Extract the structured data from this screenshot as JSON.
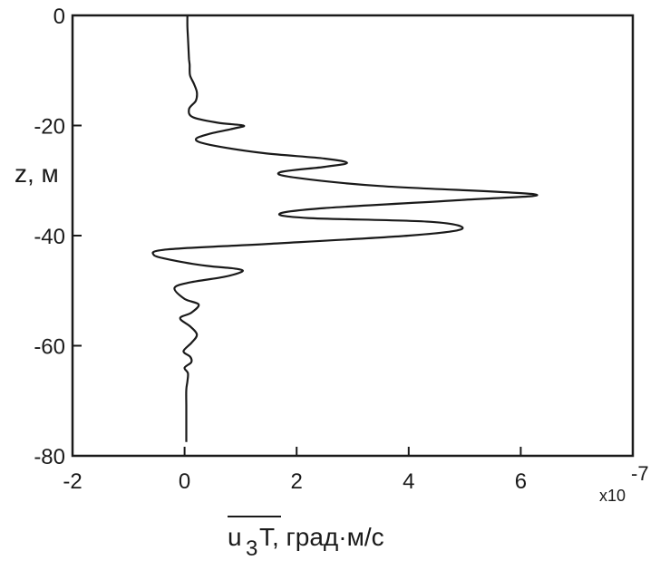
{
  "chart_data": {
    "type": "line",
    "xlabel_main": "u",
    "xlabel_sub": "3",
    "xlabel_rest": "T, град·м/с",
    "ylabel": "z, м",
    "x_multiplier_base": "x10",
    "x_multiplier_exp": "-7",
    "xlim": [
      -2,
      8
    ],
    "ylim": [
      -80,
      0
    ],
    "xticks": [
      -2,
      0,
      2,
      4,
      6
    ],
    "yticks": [
      0,
      -20,
      -40,
      -60,
      -80
    ],
    "xtick_labels": [
      "-2",
      "0",
      "2",
      "4",
      "6"
    ],
    "ytick_labels": [
      "0",
      "-20",
      "-40",
      "-60",
      "-80"
    ],
    "line_color": "#1a1a1a",
    "series": [
      {
        "x": [
          0.05,
          0.05,
          0.06,
          0.07,
          0.08,
          0.09,
          0.09,
          0.1,
          0.17,
          0.22,
          0.2,
          0.08,
          0.15,
          0.6,
          1.05,
          0.9,
          0.45,
          0.2,
          0.45,
          1.4,
          2.5,
          2.9,
          2.5,
          1.7,
          2.0,
          3.5,
          6.25,
          5.0,
          2.5,
          1.7,
          2.2,
          4.4,
          4.95,
          4.0,
          1.5,
          -0.3,
          -0.55,
          -0.2,
          0.4,
          0.9,
          1.03,
          0.7,
          0.1,
          -0.18,
          0.0,
          0.25,
          0.12,
          -0.08,
          0.1,
          0.22,
          0.12,
          -0.02,
          0.1,
          0.12,
          0.0,
          0.06,
          0.05,
          0.03,
          0.03,
          0.03,
          0.03,
          0.03
        ],
        "y": [
          0,
          -2,
          -4,
          -6,
          -8,
          -9,
          -10,
          -11,
          -12.5,
          -14,
          -15.5,
          -17,
          -18.5,
          -19.5,
          -20,
          -20.5,
          -21.5,
          -22.5,
          -23.5,
          -25,
          -26,
          -26.8,
          -27.5,
          -28.5,
          -29.5,
          -31,
          -32.5,
          -33.5,
          -35,
          -36,
          -36.8,
          -37.5,
          -38.8,
          -40,
          -41.5,
          -42.5,
          -43.5,
          -44.5,
          -45.5,
          -46,
          -46.5,
          -47.5,
          -48.5,
          -49.5,
          -51.5,
          -52.5,
          -54,
          -55,
          -56.5,
          -58,
          -59.5,
          -61,
          -62,
          -63,
          -64,
          -65,
          -66.5,
          -68,
          -71,
          -74,
          -76,
          -77.5
        ]
      }
    ]
  }
}
